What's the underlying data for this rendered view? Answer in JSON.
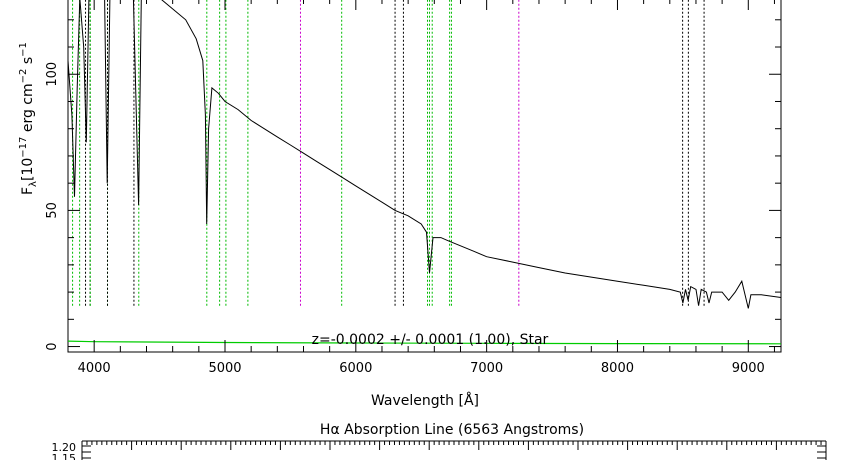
{
  "chart_data": [
    {
      "type": "line",
      "xlabel": "Wavelength [Å]",
      "ylabel_main": "F",
      "ylabel_sub": "λ",
      "ylabel_bracket": "[10",
      "ylabel_exp": "−17",
      "ylabel_units": " erg cm",
      "ylabel_exp2": "−2",
      "ylabel_s": " s",
      "ylabel_exp3": "−1",
      "xlim": [
        3800,
        9250
      ],
      "ylim": [
        -2,
        128
      ],
      "x_ticks": [
        4000,
        5000,
        6000,
        7000,
        8000,
        9000
      ],
      "y_ticks": [
        0,
        50,
        100
      ],
      "annotation": "z=-0.0002 +/- 0.0001 (1.00), Star",
      "series": [
        {
          "color": "#000000",
          "points": [
            [
              3800,
              105
            ],
            [
              3830,
              85
            ],
            [
              3850,
              55
            ],
            [
              3870,
              95
            ],
            [
              3890,
              128
            ],
            [
              3920,
              110
            ],
            [
              3940,
              75
            ],
            [
              3960,
              128
            ],
            [
              4000,
              128
            ],
            [
              4080,
              128
            ],
            [
              4100,
              60
            ],
            [
              4120,
              128
            ],
            [
              4300,
              128
            ],
            [
              4340,
              52
            ],
            [
              4360,
              128
            ],
            [
              4500,
              128
            ],
            [
              4700,
              120
            ],
            [
              4780,
              113
            ],
            [
              4830,
              105
            ],
            [
              4850,
              85
            ],
            [
              4860,
              45
            ],
            [
              4875,
              80
            ],
            [
              4900,
              95
            ],
            [
              4950,
              93
            ],
            [
              5000,
              90
            ],
            [
              5100,
              87
            ],
            [
              5200,
              83
            ],
            [
              5300,
              80
            ],
            [
              5400,
              77
            ],
            [
              5500,
              74
            ],
            [
              5600,
              71
            ],
            [
              5700,
              68
            ],
            [
              5800,
              65
            ],
            [
              5900,
              62
            ],
            [
              6000,
              59
            ],
            [
              6100,
              56
            ],
            [
              6200,
              53
            ],
            [
              6300,
              50
            ],
            [
              6400,
              48
            ],
            [
              6500,
              45
            ],
            [
              6540,
              42
            ],
            [
              6563,
              27
            ],
            [
              6590,
              40
            ],
            [
              6650,
              40
            ],
            [
              6700,
              39
            ],
            [
              6800,
              37
            ],
            [
              6900,
              35
            ],
            [
              7000,
              33
            ],
            [
              7200,
              31
            ],
            [
              7400,
              29
            ],
            [
              7600,
              27
            ],
            [
              7800,
              25.5
            ],
            [
              8000,
              24
            ],
            [
              8200,
              22.5
            ],
            [
              8400,
              21
            ],
            [
              8480,
              20
            ],
            [
              8500,
              16
            ],
            [
              8520,
              21
            ],
            [
              8540,
              17
            ],
            [
              8560,
              22
            ],
            [
              8600,
              21
            ],
            [
              8620,
              15
            ],
            [
              8640,
              21
            ],
            [
              8680,
              20
            ],
            [
              8700,
              16
            ],
            [
              8720,
              20
            ],
            [
              8800,
              20
            ],
            [
              8850,
              17
            ],
            [
              8900,
              20
            ],
            [
              8950,
              24
            ],
            [
              8980,
              18
            ],
            [
              9000,
              14
            ],
            [
              9020,
              19
            ],
            [
              9100,
              19
            ],
            [
              9250,
              18
            ]
          ]
        },
        {
          "color": "#00cc00",
          "points": [
            [
              3800,
              2
            ],
            [
              4000,
              1.8
            ],
            [
              5000,
              1.5
            ],
            [
              6000,
              1.3
            ],
            [
              7000,
              1.2
            ],
            [
              8000,
              1.1
            ],
            [
              9250,
              1.0
            ]
          ]
        }
      ],
      "vlines": [
        {
          "x": 3835,
          "color": "#00bb00"
        },
        {
          "x": 3889,
          "color": "#00bb00"
        },
        {
          "x": 3934,
          "color": "#000000"
        },
        {
          "x": 3969,
          "color": "#000000"
        },
        {
          "x": 3970,
          "color": "#00bb00"
        },
        {
          "x": 4102,
          "color": "#00bb00"
        },
        {
          "x": 4102,
          "color": "#000000"
        },
        {
          "x": 4304,
          "color": "#000000"
        },
        {
          "x": 4341,
          "color": "#00bb00"
        },
        {
          "x": 4861,
          "color": "#00bb00"
        },
        {
          "x": 4959,
          "color": "#00bb00"
        },
        {
          "x": 5007,
          "color": "#00bb00"
        },
        {
          "x": 5175,
          "color": "#00bb00"
        },
        {
          "x": 5577,
          "color": "#cc00cc"
        },
        {
          "x": 5892,
          "color": "#00bb00"
        },
        {
          "x": 6300,
          "color": "#000000"
        },
        {
          "x": 6364,
          "color": "#000000"
        },
        {
          "x": 6548,
          "color": "#00bb00"
        },
        {
          "x": 6563,
          "color": "#00bb00"
        },
        {
          "x": 6584,
          "color": "#00bb00"
        },
        {
          "x": 6717,
          "color": "#00bb00"
        },
        {
          "x": 6731,
          "color": "#00bb00"
        },
        {
          "x": 7246,
          "color": "#cc00cc"
        },
        {
          "x": 8498,
          "color": "#000000"
        },
        {
          "x": 8542,
          "color": "#000000"
        },
        {
          "x": 8662,
          "color": "#000000"
        }
      ]
    },
    {
      "type": "line",
      "title": "Hα Absorption Line (6563 Angstroms)",
      "y_ticks_visible": [
        "1.20",
        "1.15"
      ]
    }
  ]
}
